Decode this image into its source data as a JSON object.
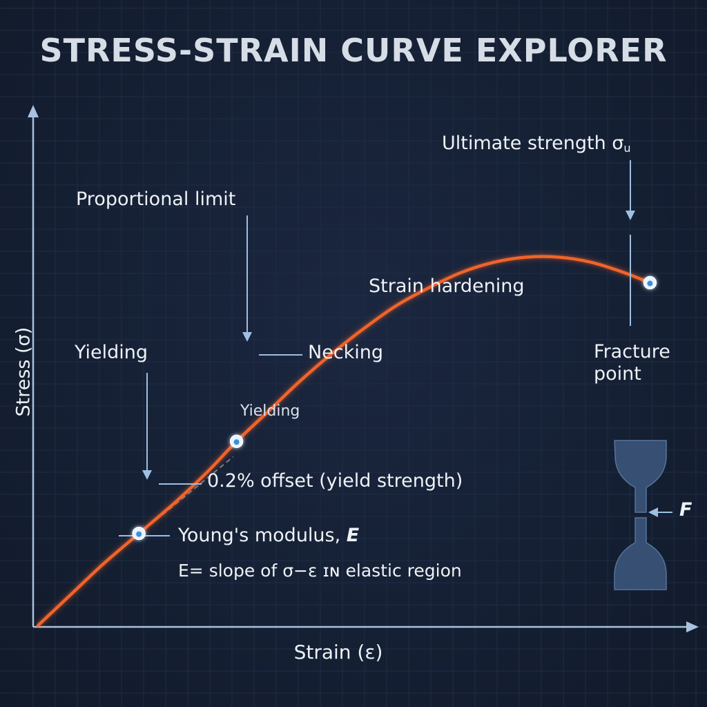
{
  "page": {
    "title": "STRESS-STRAIN CURVE EXPLORER"
  },
  "chart_data": {
    "type": "line",
    "title": "STRESS-STRAIN CURVE EXPLORER",
    "xlabel": "Strain (ε)",
    "ylabel": "Stress (σ)",
    "grid": true,
    "series": [
      {
        "color": "#f0642a",
        "points": [
          [
            0.0,
            0.0
          ],
          [
            0.05,
            0.06
          ],
          [
            0.1,
            0.12
          ],
          [
            0.155,
            0.18
          ],
          [
            0.21,
            0.24
          ],
          [
            0.26,
            0.3
          ],
          [
            0.305,
            0.36
          ],
          [
            0.355,
            0.42
          ],
          [
            0.4,
            0.475
          ],
          [
            0.45,
            0.53
          ],
          [
            0.5,
            0.58
          ],
          [
            0.55,
            0.625
          ],
          [
            0.6,
            0.66
          ],
          [
            0.65,
            0.69
          ],
          [
            0.7,
            0.71
          ],
          [
            0.75,
            0.72
          ],
          [
            0.8,
            0.72
          ],
          [
            0.85,
            0.71
          ],
          [
            0.9,
            0.69
          ],
          [
            0.94,
            0.67
          ]
        ]
      }
    ],
    "markers": [
      {
        "name": "offset-point",
        "x": 0.155,
        "y": 0.18
      },
      {
        "name": "proportional-point",
        "x": 0.305,
        "y": 0.36
      },
      {
        "name": "fracture-point",
        "x": 0.94,
        "y": 0.67
      }
    ],
    "offset_line": {
      "from": [
        0.155,
        0.18
      ],
      "to": [
        0.3,
        0.33
      ]
    },
    "annotations": {
      "proportional_limit": "Proportional limit",
      "ultimate_strength": "Ultimate strength σ",
      "ultimate_strength_sub": "u",
      "strain_hardening": "Strain hardening",
      "yielding_left": "Yielding",
      "necking": "Necking",
      "yielding_inner": "Yielding",
      "fracture_point_line1": "Fracture",
      "fracture_point_line2": "point",
      "offset": "0.2% offset (yield strength)",
      "youngs_modulus": "Young's modulus, ",
      "youngs_modulus_symbol": "E",
      "slope_note": "E= slope of σ−ε ɪɴ elastic region",
      "force": "F"
    },
    "colors": {
      "curve": "#f0642a",
      "axis": "#a9c2df",
      "leader": "#9fbfe3",
      "grid": "#1f2c44",
      "marker": "#cfe6ff",
      "specimen": "#3d5a80"
    }
  }
}
